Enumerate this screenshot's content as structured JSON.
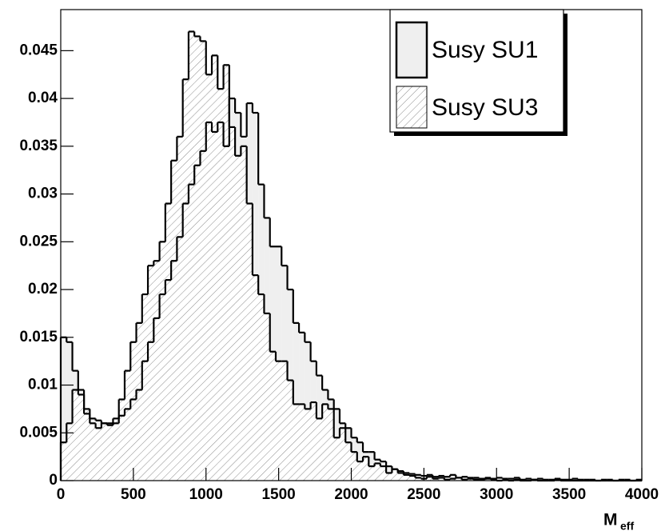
{
  "chart_data": {
    "type": "histogram",
    "xlabel": {
      "main": "M",
      "sub": "eff"
    },
    "bins": [
      0,
      40,
      80,
      120,
      160,
      200,
      240,
      280,
      320,
      360,
      400,
      440,
      480,
      520,
      560,
      600,
      640,
      680,
      720,
      760,
      800,
      840,
      880,
      920,
      960,
      1000,
      1040,
      1080,
      1120,
      1160,
      1200,
      1240,
      1280,
      1320,
      1360,
      1400,
      1440,
      1480,
      1520,
      1560,
      1600,
      1640,
      1680,
      1720,
      1760,
      1800,
      1840,
      1880,
      1920,
      1960,
      2000,
      2040,
      2080,
      2120,
      2160,
      2200,
      2240,
      2280,
      2320,
      2360,
      2400,
      2440,
      2480,
      2520,
      2560,
      2600,
      2640,
      2680,
      2720,
      2760,
      2800,
      2840,
      2880,
      2920,
      2960,
      3000,
      3040,
      3080,
      3120,
      3160,
      3200,
      3240,
      3280,
      3320,
      3360,
      3400,
      3440,
      3480,
      3520,
      3560,
      3600,
      3640,
      3680,
      3720,
      3760,
      3800,
      3840,
      3880,
      3920,
      3960,
      4000
    ],
    "series": [
      {
        "name": "Susy SU1",
        "color": "#efefef",
        "fill": "solid",
        "values": [
          0.015,
          0.0145,
          0.0115,
          0.0095,
          0.007,
          0.0065,
          0.0063,
          0.006,
          0.006,
          0.006,
          0.0068,
          0.0075,
          0.0085,
          0.0095,
          0.0125,
          0.0145,
          0.017,
          0.0195,
          0.021,
          0.023,
          0.0255,
          0.029,
          0.031,
          0.033,
          0.0345,
          0.0375,
          0.0365,
          0.0375,
          0.035,
          0.04,
          0.0385,
          0.036,
          0.0395,
          0.0385,
          0.031,
          0.0275,
          0.0245,
          0.0245,
          0.0225,
          0.02,
          0.0165,
          0.0155,
          0.0145,
          0.0125,
          0.011,
          0.0095,
          0.0085,
          0.0075,
          0.006,
          0.0055,
          0.0045,
          0.004,
          0.003,
          0.003,
          0.0022,
          0.002,
          0.0015,
          0.0012,
          0.001,
          0.0008,
          0.0007,
          0.0006,
          0.0005,
          0.0006,
          0.0004,
          0.0005,
          0.0004,
          0.0006,
          0.0003,
          0.0004,
          0.0003,
          0.0003,
          0.0002,
          0.0003,
          0.0002,
          0.0003,
          0.0002,
          0.0002,
          0.0003,
          0.0001,
          0.0002,
          0.0001,
          0.0002,
          0.0001,
          0.0001,
          0.0002,
          0.0001,
          0.0001,
          0.0002,
          0.0001,
          0.0001,
          0.0001,
          0,
          0.0001,
          0.0001,
          0,
          0.0001,
          0.0001,
          0,
          0.0001
        ]
      },
      {
        "name": "Susy SU3",
        "color": "#8c8c8c",
        "fill": "hatch",
        "values": [
          0.004,
          0.006,
          0.0095,
          0.009,
          0.0075,
          0.006,
          0.0055,
          0.006,
          0.0058,
          0.0065,
          0.0085,
          0.0115,
          0.0145,
          0.0165,
          0.0195,
          0.0225,
          0.023,
          0.025,
          0.029,
          0.0335,
          0.036,
          0.042,
          0.047,
          0.0465,
          0.046,
          0.0425,
          0.0445,
          0.041,
          0.0435,
          0.037,
          0.034,
          0.035,
          0.029,
          0.0215,
          0.0195,
          0.0175,
          0.0135,
          0.0125,
          0.0125,
          0.0105,
          0.008,
          0.008,
          0.0075,
          0.0082,
          0.0065,
          0.008,
          0.0075,
          0.0045,
          0.0055,
          0.004,
          0.003,
          0.002,
          0.0025,
          0.0015,
          0.0018,
          0.0015,
          0.0008,
          0.0012,
          0.0008,
          0.0006,
          0.0005,
          0.0003,
          0.0002,
          0.0004,
          0.0002,
          0.0003,
          0.0001,
          0.0002,
          0.0003,
          0.0001,
          0.0002,
          0.0001,
          0.0001,
          0.0002,
          0.0001,
          0,
          0.0001,
          0,
          0.0001,
          0,
          0,
          0.0001,
          0,
          0,
          0,
          0.0001,
          0,
          0,
          0,
          0,
          0,
          0,
          0,
          0,
          0,
          0,
          0,
          0,
          0,
          0
        ]
      }
    ],
    "xlim": [
      0,
      4000
    ],
    "xticks": [
      0,
      500,
      1000,
      1500,
      2000,
      2500,
      3000,
      3500,
      4000
    ],
    "ylim": [
      0,
      0.0493
    ],
    "yticks": [
      0,
      0.005,
      0.01,
      0.015,
      0.02,
      0.025,
      0.03,
      0.035,
      0.04,
      0.045
    ],
    "grid": false,
    "legend": "top right"
  }
}
